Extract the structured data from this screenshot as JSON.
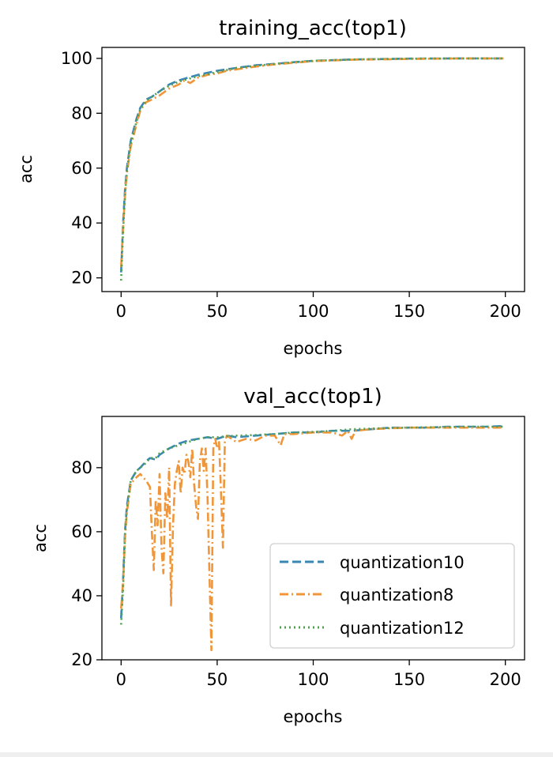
{
  "chart_data": [
    {
      "type": "line",
      "title": "training_acc(top1)",
      "xlabel": "epochs",
      "ylabel": "acc",
      "xlim": [
        -10,
        210
      ],
      "ylim": [
        15,
        104
      ],
      "xticks": [
        0,
        50,
        100,
        150,
        200
      ],
      "yticks": [
        20,
        40,
        60,
        80,
        100
      ],
      "grid": false,
      "series": [
        {
          "name": "quantization10",
          "color": "#3a86b4",
          "dash": "dashed",
          "points": [
            [
              0,
              22
            ],
            [
              1,
              40
            ],
            [
              2,
              52
            ],
            [
              3,
              60
            ],
            [
              5,
              70
            ],
            [
              8,
              78
            ],
            [
              10,
              82
            ],
            [
              13,
              85
            ],
            [
              16,
              86
            ],
            [
              20,
              88
            ],
            [
              25,
              90.5
            ],
            [
              30,
              92
            ],
            [
              35,
              93
            ],
            [
              40,
              94
            ],
            [
              50,
              95.5
            ],
            [
              60,
              96.5
            ],
            [
              70,
              97.5
            ],
            [
              80,
              98
            ],
            [
              90,
              98.6
            ],
            [
              100,
              99.1
            ],
            [
              120,
              99.6
            ],
            [
              150,
              99.9
            ],
            [
              180,
              100
            ],
            [
              199,
              100
            ]
          ]
        },
        {
          "name": "quantization8",
          "color": "#f0963a",
          "dash": "dashdot",
          "points": [
            [
              0,
              24
            ],
            [
              1,
              38
            ],
            [
              2,
              50
            ],
            [
              3,
              58
            ],
            [
              5,
              68
            ],
            [
              8,
              76
            ],
            [
              10,
              81
            ],
            [
              13,
              84
            ],
            [
              16,
              85
            ],
            [
              20,
              86.5
            ],
            [
              25,
              89
            ],
            [
              30,
              90.5
            ],
            [
              33,
              92
            ],
            [
              36,
              91
            ],
            [
              40,
              93
            ],
            [
              45,
              94
            ],
            [
              50,
              94.5
            ],
            [
              55,
              95.5
            ],
            [
              60,
              96
            ],
            [
              70,
              97
            ],
            [
              80,
              97.8
            ],
            [
              90,
              98.4
            ],
            [
              100,
              99
            ],
            [
              120,
              99.5
            ],
            [
              150,
              99.8
            ],
            [
              180,
              100
            ],
            [
              199,
              100
            ]
          ]
        },
        {
          "name": "quantization12",
          "color": "#4ea24e",
          "dash": "dotted",
          "points": [
            [
              0,
              19
            ],
            [
              1,
              37
            ],
            [
              2,
              50
            ],
            [
              3,
              59
            ],
            [
              5,
              69
            ],
            [
              8,
              77
            ],
            [
              10,
              81.5
            ],
            [
              13,
              84.5
            ],
            [
              16,
              86
            ],
            [
              20,
              88
            ],
            [
              25,
              90
            ],
            [
              30,
              91.5
            ],
            [
              35,
              92.5
            ],
            [
              40,
              93.5
            ],
            [
              50,
              95
            ],
            [
              60,
              96.5
            ],
            [
              70,
              97.3
            ],
            [
              80,
              98
            ],
            [
              90,
              98.6
            ],
            [
              100,
              99.1
            ],
            [
              120,
              99.6
            ],
            [
              150,
              99.9
            ],
            [
              180,
              100
            ],
            [
              199,
              100
            ]
          ]
        }
      ]
    },
    {
      "type": "line",
      "title": "val_acc(top1)",
      "xlabel": "epochs",
      "ylabel": "acc",
      "xlim": [
        -10,
        210
      ],
      "ylim": [
        20,
        96
      ],
      "xticks": [
        0,
        50,
        100,
        150,
        200
      ],
      "yticks": [
        20,
        40,
        60,
        80
      ],
      "grid": false,
      "legend": "lower-right",
      "series": [
        {
          "name": "quantization10",
          "color": "#3a86b4",
          "dash": "dashed",
          "points": [
            [
              0,
              33
            ],
            [
              1,
              45
            ],
            [
              2,
              60
            ],
            [
              3,
              68
            ],
            [
              5,
              76
            ],
            [
              8,
              79
            ],
            [
              10,
              80
            ],
            [
              13,
              82
            ],
            [
              15,
              83
            ],
            [
              18,
              82.5
            ],
            [
              20,
              84
            ],
            [
              25,
              86
            ],
            [
              30,
              87.5
            ],
            [
              35,
              88.5
            ],
            [
              40,
              89
            ],
            [
              45,
              89.5
            ],
            [
              50,
              89
            ],
            [
              55,
              90
            ],
            [
              60,
              89.5
            ],
            [
              70,
              90
            ],
            [
              80,
              90.5
            ],
            [
              90,
              91
            ],
            [
              100,
              91
            ],
            [
              110,
              91.5
            ],
            [
              120,
              91.5
            ],
            [
              130,
              92
            ],
            [
              140,
              92.5
            ],
            [
              150,
              92.5
            ],
            [
              160,
              92.5
            ],
            [
              170,
              92.8
            ],
            [
              180,
              92.8
            ],
            [
              190,
              92.8
            ],
            [
              199,
              93
            ]
          ]
        },
        {
          "name": "quantization8",
          "color": "#f0963a",
          "dash": "dashdot",
          "points": [
            [
              0,
              36
            ],
            [
              1,
              44
            ],
            [
              2,
              58
            ],
            [
              3,
              66
            ],
            [
              5,
              75
            ],
            [
              8,
              77
            ],
            [
              10,
              78
            ],
            [
              13,
              76
            ],
            [
              15,
              74
            ],
            [
              16,
              60
            ],
            [
              17,
              48
            ],
            [
              18,
              70
            ],
            [
              19,
              62
            ],
            [
              20,
              78
            ],
            [
              21,
              55
            ],
            [
              22,
              47
            ],
            [
              23,
              72
            ],
            [
              24,
              64
            ],
            [
              25,
              80
            ],
            [
              26,
              37
            ],
            [
              27,
              62
            ],
            [
              28,
              75
            ],
            [
              29,
              79
            ],
            [
              30,
              82
            ],
            [
              31,
              72
            ],
            [
              32,
              80
            ],
            [
              33,
              78
            ],
            [
              34,
              84
            ],
            [
              35,
              82
            ],
            [
              36,
              77
            ],
            [
              37,
              86
            ],
            [
              38,
              75
            ],
            [
              39,
              68
            ],
            [
              40,
              64
            ],
            [
              41,
              82
            ],
            [
              42,
              86
            ],
            [
              43,
              79
            ],
            [
              44,
              86
            ],
            [
              45,
              70
            ],
            [
              46,
              46
            ],
            [
              47,
              23
            ],
            [
              48,
              86
            ],
            [
              49,
              89
            ],
            [
              50,
              86
            ],
            [
              51,
              88
            ],
            [
              52,
              72
            ],
            [
              53,
              55
            ],
            [
              54,
              88
            ],
            [
              55,
              90
            ],
            [
              60,
              88
            ],
            [
              65,
              89
            ],
            [
              70,
              88.5
            ],
            [
              75,
              90
            ],
            [
              80,
              90
            ],
            [
              83,
              87
            ],
            [
              85,
              90.5
            ],
            [
              90,
              90.5
            ],
            [
              100,
              91
            ],
            [
              110,
              91
            ],
            [
              115,
              90
            ],
            [
              118,
              91.5
            ],
            [
              120,
              89
            ],
            [
              122,
              91.5
            ],
            [
              130,
              92
            ],
            [
              140,
              92.3
            ],
            [
              150,
              92.5
            ],
            [
              160,
              92.5
            ],
            [
              170,
              92.5
            ],
            [
              180,
              92.5
            ],
            [
              190,
              92.5
            ],
            [
              199,
              92.5
            ]
          ]
        },
        {
          "name": "quantization12",
          "color": "#4ea24e",
          "dash": "dotted",
          "points": [
            [
              0,
              31
            ],
            [
              1,
              42
            ],
            [
              2,
              59
            ],
            [
              3,
              67
            ],
            [
              5,
              76
            ],
            [
              8,
              79
            ],
            [
              10,
              80
            ],
            [
              13,
              81.5
            ],
            [
              15,
              83
            ],
            [
              18,
              83
            ],
            [
              20,
              84.5
            ],
            [
              25,
              86
            ],
            [
              30,
              87
            ],
            [
              35,
              88
            ],
            [
              40,
              89
            ],
            [
              45,
              89.5
            ],
            [
              50,
              89.5
            ],
            [
              55,
              89.8
            ],
            [
              60,
              90
            ],
            [
              70,
              90.2
            ],
            [
              80,
              90.5
            ],
            [
              90,
              91
            ],
            [
              100,
              91.2
            ],
            [
              110,
              91.5
            ],
            [
              120,
              92
            ],
            [
              130,
              92.2
            ],
            [
              140,
              92.4
            ],
            [
              150,
              92.5
            ],
            [
              160,
              92.6
            ],
            [
              170,
              92.7
            ],
            [
              180,
              92.8
            ],
            [
              190,
              92.8
            ],
            [
              199,
              92.8
            ]
          ]
        }
      ]
    }
  ]
}
